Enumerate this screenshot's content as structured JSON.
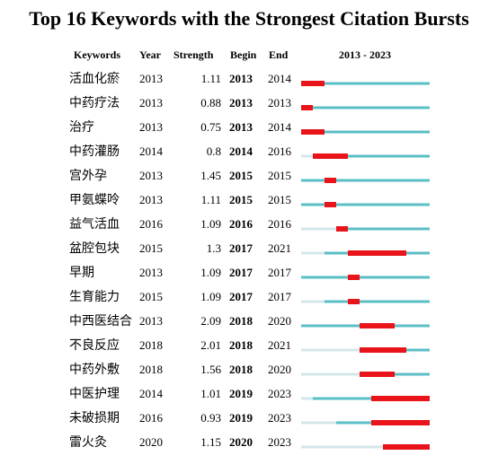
{
  "title": "Top 16 Keywords with the Strongest Citation Bursts",
  "columns": [
    "Keywords",
    "Year",
    "Strength",
    "Begin",
    "End"
  ],
  "timeline": {
    "label": "2013 - 2023",
    "range": [
      2013,
      2023
    ]
  },
  "rows": [
    {
      "keyword": "活血化瘀",
      "year": 2013,
      "strength": 1.11,
      "begin": 2013,
      "end": 2014
    },
    {
      "keyword": "中药疗法",
      "year": 2013,
      "strength": 0.88,
      "begin": 2013,
      "end": 2013
    },
    {
      "keyword": "治疗",
      "year": 2013,
      "strength": 0.75,
      "begin": 2013,
      "end": 2014
    },
    {
      "keyword": "中药灌肠",
      "year": 2014,
      "strength": 0.8,
      "begin": 2014,
      "end": 2016
    },
    {
      "keyword": "宫外孕",
      "year": 2013,
      "strength": 1.45,
      "begin": 2015,
      "end": 2015
    },
    {
      "keyword": "甲氨蝶呤",
      "year": 2013,
      "strength": 1.11,
      "begin": 2015,
      "end": 2015
    },
    {
      "keyword": "益气活血",
      "year": 2016,
      "strength": 1.09,
      "begin": 2016,
      "end": 2016
    },
    {
      "keyword": "盆腔包块",
      "year": 2015,
      "strength": 1.3,
      "begin": 2017,
      "end": 2021
    },
    {
      "keyword": "早期",
      "year": 2013,
      "strength": 1.09,
      "begin": 2017,
      "end": 2017
    },
    {
      "keyword": "生育能力",
      "year": 2015,
      "strength": 1.09,
      "begin": 2017,
      "end": 2017
    },
    {
      "keyword": "中西医结合",
      "year": 2013,
      "strength": 2.09,
      "begin": 2018,
      "end": 2020
    },
    {
      "keyword": "不良反应",
      "year": 2018,
      "strength": 2.01,
      "begin": 2018,
      "end": 2021
    },
    {
      "keyword": "中药外敷",
      "year": 2018,
      "strength": 1.56,
      "begin": 2018,
      "end": 2020
    },
    {
      "keyword": "中医护理",
      "year": 2014,
      "strength": 1.01,
      "begin": 2019,
      "end": 2023
    },
    {
      "keyword": "未破损期",
      "year": 2016,
      "strength": 0.93,
      "begin": 2019,
      "end": 2023
    },
    {
      "keyword": "雷火灸",
      "year": 2020,
      "strength": 1.15,
      "begin": 2020,
      "end": 2023
    }
  ]
}
